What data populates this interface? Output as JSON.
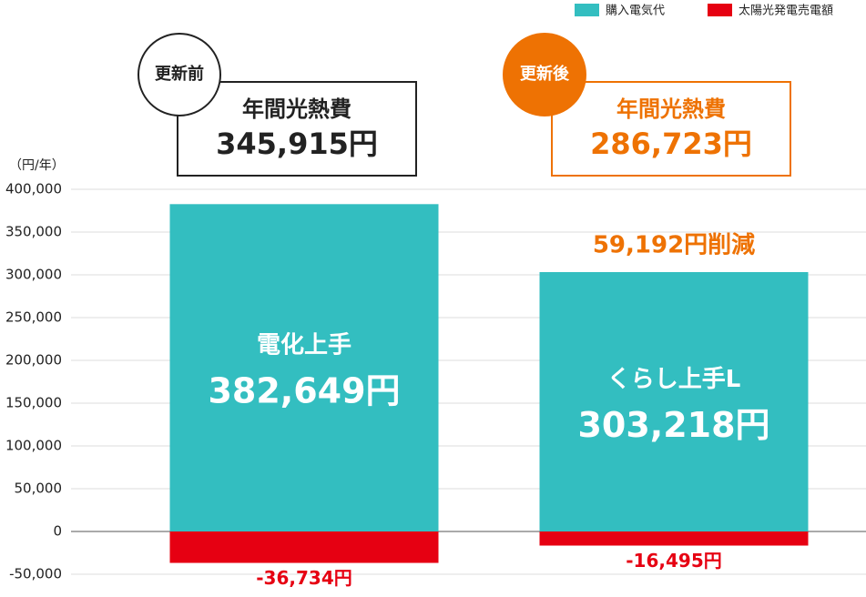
{
  "chart_data": {
    "type": "bar",
    "y_axis_label": "（円/年）",
    "categories": [
      "電化上手",
      "くらし上手L"
    ],
    "series": [
      {
        "name": "購入電気代",
        "color": "#33bec0",
        "values": [
          382649,
          303218
        ],
        "value_labels": [
          "382,649円",
          "303,218円"
        ]
      },
      {
        "name": "太陽光発電売電額",
        "color": "#e60012",
        "values": [
          -36734,
          -16495
        ],
        "value_labels": [
          "-36,734円",
          "-16,495円"
        ]
      }
    ],
    "ylim": [
      -50000,
      400000
    ],
    "yticks": [
      {
        "value": -50000,
        "label": "-50,000"
      },
      {
        "value": 50000,
        "label": "50,000"
      },
      0,
      {
        "value": 100000,
        "label": "100,000"
      },
      {
        "value": 150000,
        "label": "150,000"
      },
      {
        "value": 200000,
        "label": "200,000"
      },
      {
        "value": 250000,
        "label": "250,000"
      },
      {
        "value": 300000,
        "label": "300,000"
      },
      {
        "value": 350000,
        "label": "350,000"
      },
      {
        "value": 400000,
        "label": "400,000"
      }
    ],
    "grid": true,
    "legend": "top-right",
    "annotations": [
      {
        "badge": "更新前",
        "title": "年間光熱費",
        "total": "345,915円",
        "color": "#222222"
      },
      {
        "badge": "更新後",
        "title": "年間光熱費",
        "total": "286,723円",
        "color": "#ee7203"
      }
    ],
    "savings": "59,192円削減"
  }
}
